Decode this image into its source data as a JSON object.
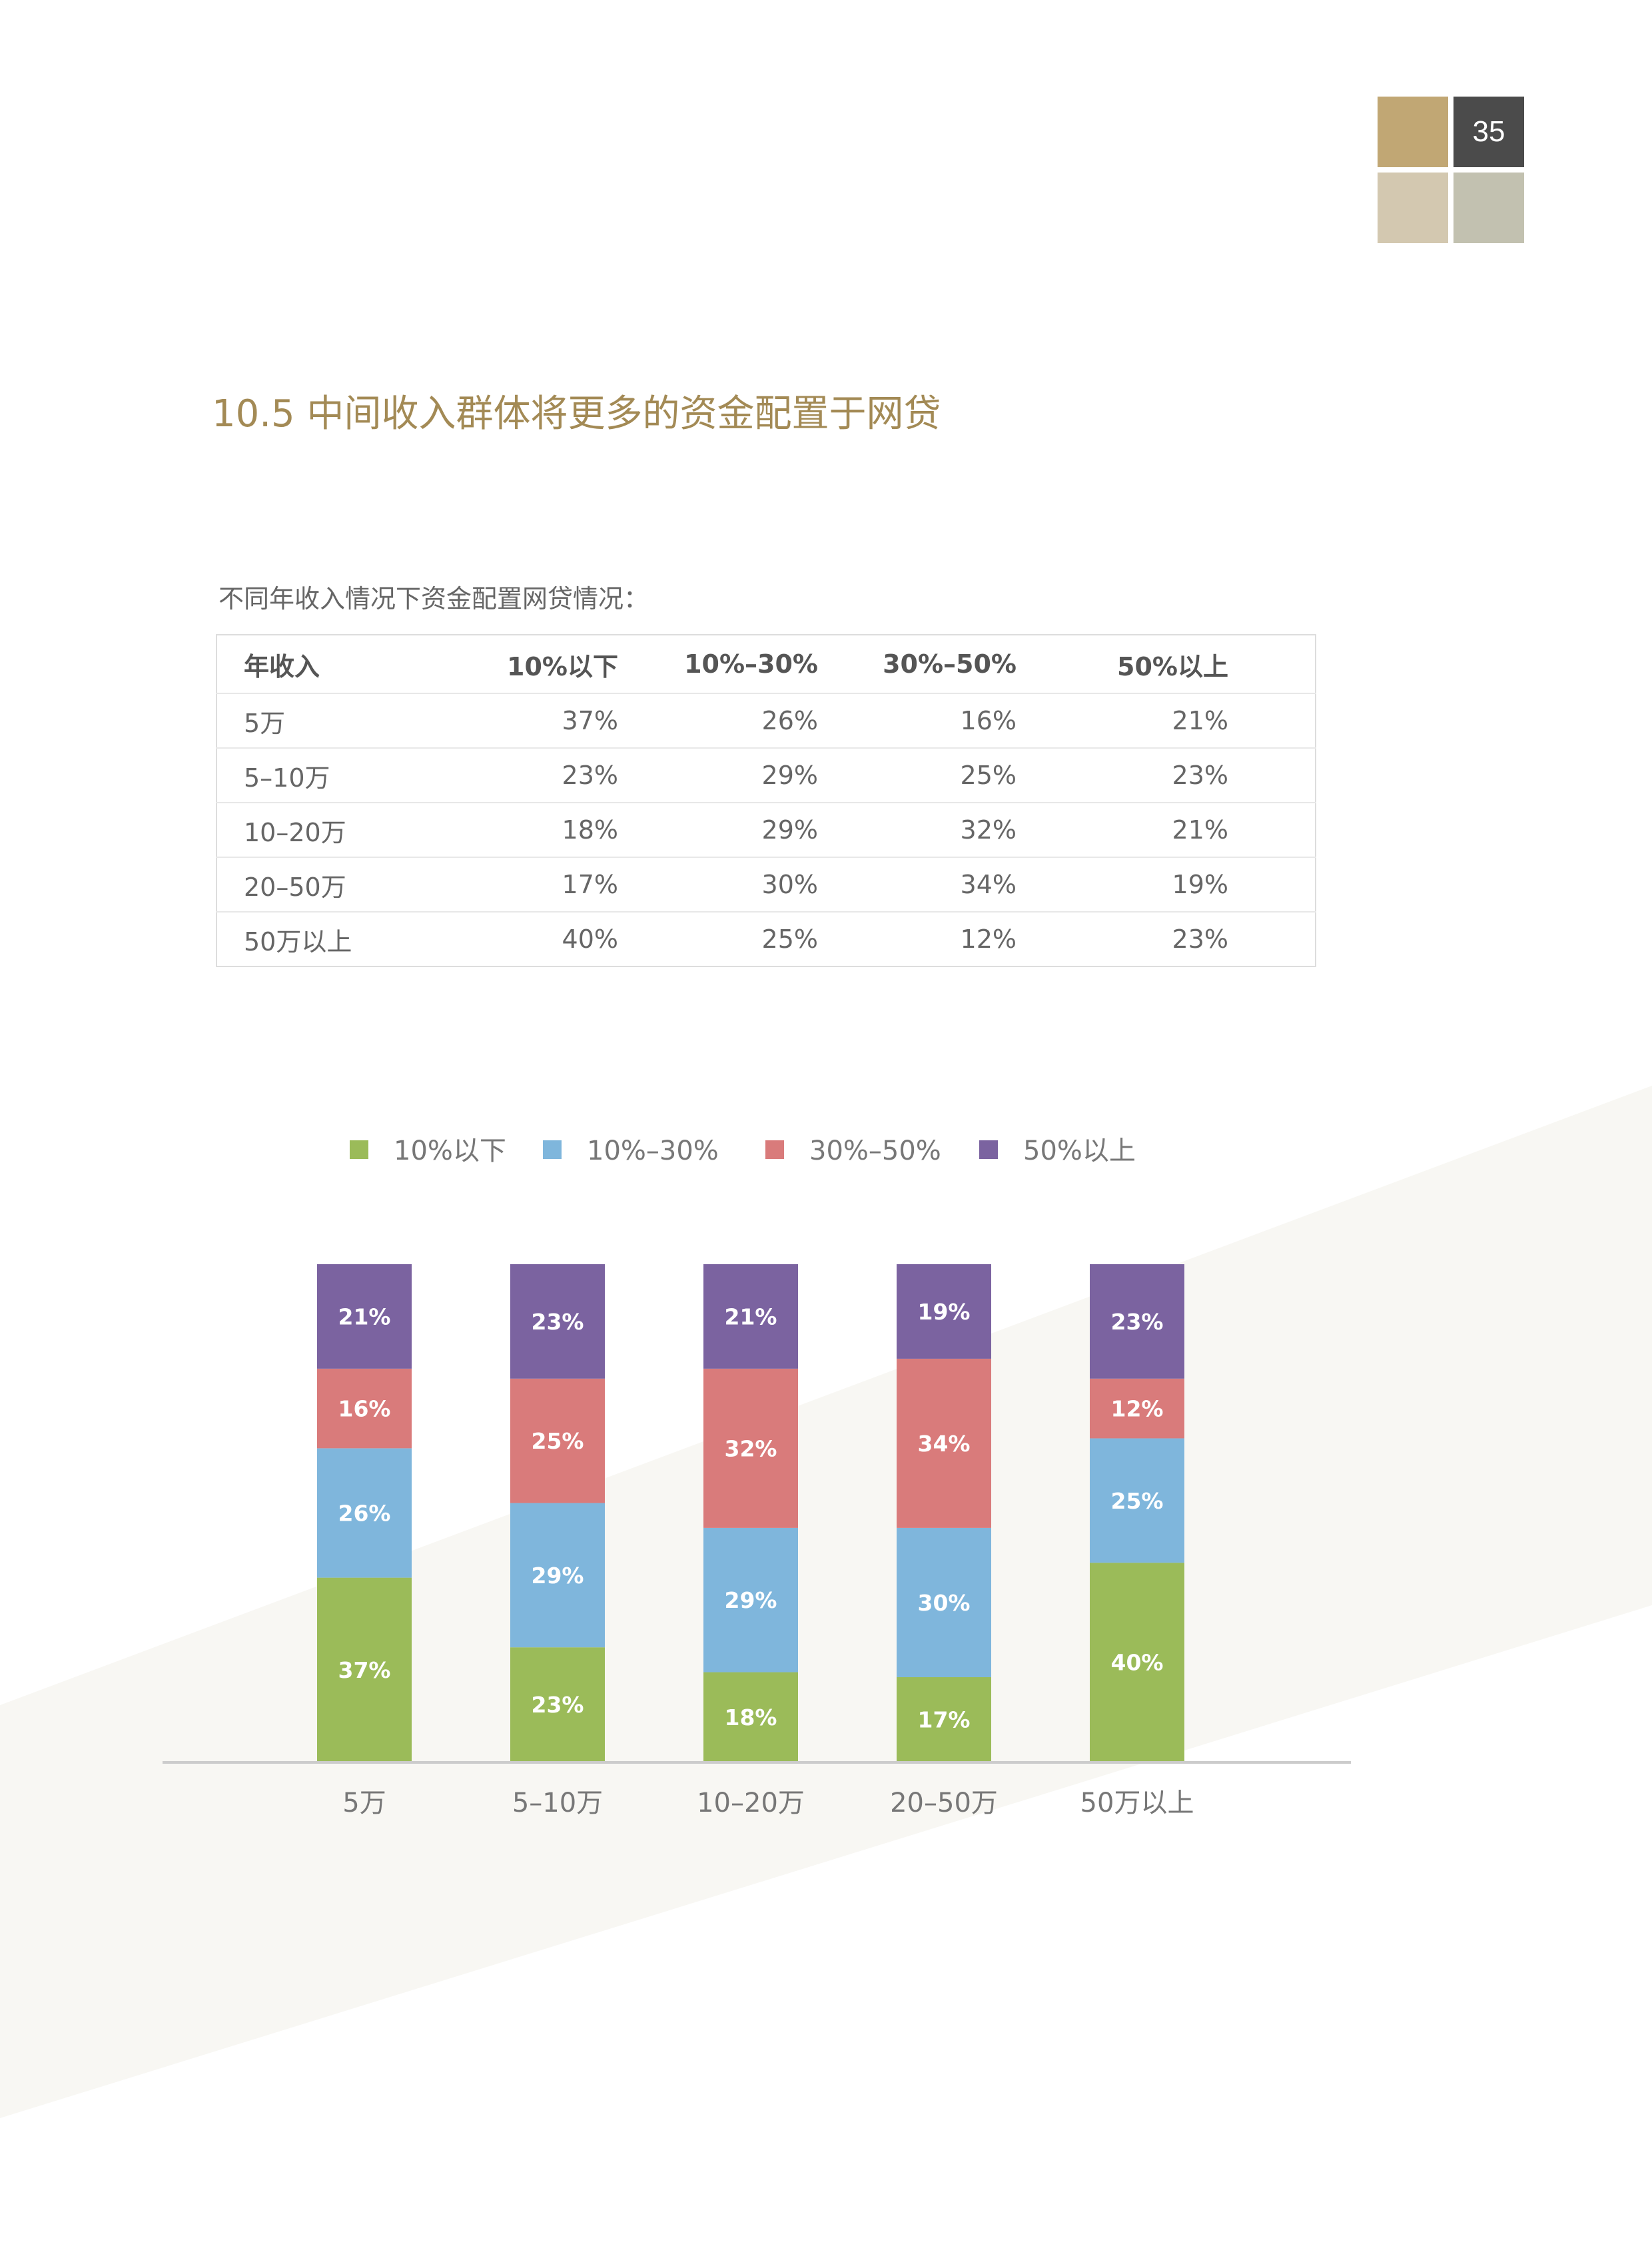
{
  "page": {
    "number": "35",
    "colors": {
      "gold": "#c1a774",
      "dark": "#4b4b4b",
      "beige": "#d3c8b0",
      "gray": "#c2c1b0",
      "band": "#f8f7f3",
      "title": "#a38a55"
    }
  },
  "section_title": "10.5 中间收入群体将更多的资金配置于网贷",
  "table": {
    "caption": "不同年收入情况下资金配置网贷情况：",
    "headers": [
      "年收入",
      "10%以下",
      "10%–30%",
      "30%–50%",
      "50%以上"
    ],
    "rows": [
      [
        "5万",
        "37%",
        "26%",
        "16%",
        "21%"
      ],
      [
        "5–10万",
        "23%",
        "29%",
        "25%",
        "23%"
      ],
      [
        "10–20万",
        "18%",
        "29%",
        "32%",
        "21%"
      ],
      [
        "20–50万",
        "17%",
        "30%",
        "34%",
        "19%"
      ],
      [
        "50万以上",
        "40%",
        "25%",
        "12%",
        "23%"
      ]
    ]
  },
  "chart_data": {
    "type": "bar",
    "stacked": true,
    "categories": [
      "5万",
      "5–10万",
      "10–20万",
      "20–50万",
      "50万以上"
    ],
    "series": [
      {
        "name": "10%以下",
        "color": "#9bbb59",
        "values": [
          37,
          23,
          18,
          17,
          40
        ]
      },
      {
        "name": "10%–30%",
        "color": "#7fb6dc",
        "values": [
          26,
          29,
          29,
          30,
          25
        ]
      },
      {
        "name": "30%–50%",
        "color": "#d97b7b",
        "values": [
          16,
          25,
          32,
          34,
          12
        ]
      },
      {
        "name": "50%以上",
        "color": "#7b63a0",
        "values": [
          21,
          23,
          21,
          19,
          23
        ]
      }
    ],
    "value_suffix": "%",
    "ylim": [
      0,
      100
    ],
    "legend_position": "top",
    "grid": false,
    "title": "",
    "xlabel": "",
    "ylabel": ""
  }
}
